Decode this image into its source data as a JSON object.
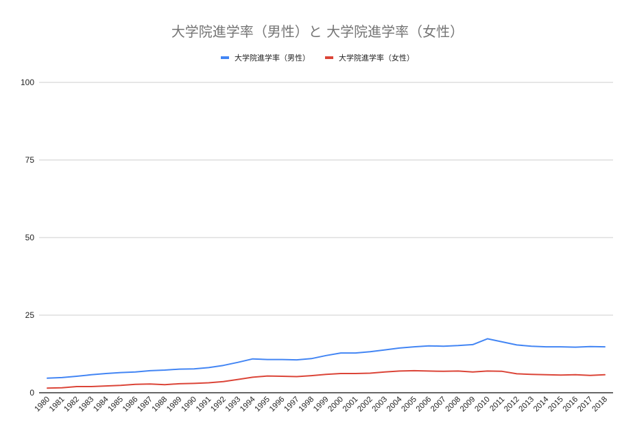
{
  "chart_data": {
    "type": "line",
    "title": "大学院進学率（男性）と 大学院進学率（女性）",
    "xlabel": "",
    "ylabel": "",
    "ylim": [
      0,
      100
    ],
    "yticks": [
      0,
      25,
      50,
      75,
      100
    ],
    "grid": true,
    "legend_position": "top",
    "categories": [
      "1980",
      "1981",
      "1982",
      "1983",
      "1984",
      "1985",
      "1986",
      "1987",
      "1988",
      "1989",
      "1990",
      "1991",
      "1992",
      "1993",
      "1994",
      "1995",
      "1996",
      "1997",
      "1998",
      "1999",
      "2000",
      "2001",
      "2002",
      "2003",
      "2004",
      "2005",
      "2006",
      "2007",
      "2008",
      "2009",
      "2010",
      "2011",
      "2012",
      "2013",
      "2014",
      "2015",
      "2016",
      "2017",
      "2018"
    ],
    "series": [
      {
        "name": "大学院進学率（男性）",
        "color": "#4285f4",
        "values": [
          4.7,
          4.9,
          5.3,
          5.8,
          6.2,
          6.5,
          6.7,
          7.1,
          7.3,
          7.6,
          7.7,
          8.1,
          8.8,
          9.8,
          10.9,
          10.7,
          10.7,
          10.6,
          11.0,
          12.0,
          12.8,
          12.8,
          13.2,
          13.8,
          14.4,
          14.8,
          15.1,
          15.0,
          15.2,
          15.5,
          17.4,
          16.4,
          15.4,
          15.0,
          14.8,
          14.8,
          14.7,
          14.9,
          14.8
        ]
      },
      {
        "name": "大学院進学率（女性）",
        "color": "#db4437",
        "values": [
          1.5,
          1.6,
          2.0,
          2.0,
          2.2,
          2.4,
          2.7,
          2.8,
          2.6,
          2.9,
          3.0,
          3.2,
          3.6,
          4.3,
          5.0,
          5.4,
          5.3,
          5.2,
          5.5,
          5.9,
          6.2,
          6.2,
          6.3,
          6.7,
          7.0,
          7.1,
          7.0,
          6.9,
          7.0,
          6.7,
          7.0,
          6.9,
          6.1,
          5.9,
          5.8,
          5.7,
          5.8,
          5.6,
          5.8
        ]
      }
    ]
  },
  "title": "大学院進学率（男性）と 大学院進学率（女性）",
  "legend": [
    {
      "label": "大学院進学率（男性）",
      "color": "#4285f4"
    },
    {
      "label": "大学院進学率（女性）",
      "color": "#db4437"
    }
  ]
}
